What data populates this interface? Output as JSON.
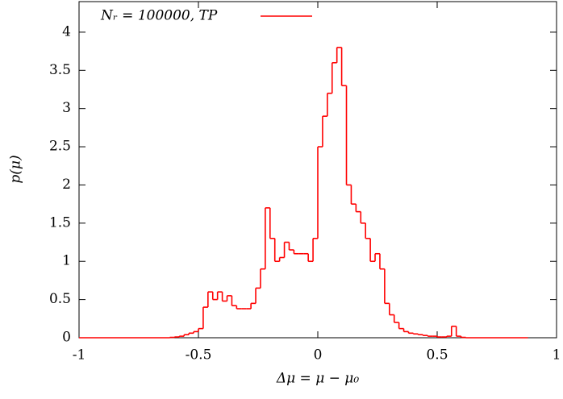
{
  "chart_data": {
    "type": "histogram",
    "xlabel": "Δμ = μ − μ₀",
    "ylabel": "p(μ)",
    "series": [
      {
        "name": "Nᵣ = 100000, TP",
        "color": "#ff0000",
        "bins": [
          -1,
          -0.62,
          -0.6,
          -0.58,
          -0.56,
          -0.54,
          -0.52,
          -0.5,
          -0.48,
          -0.46,
          -0.44,
          -0.42,
          -0.4,
          -0.38,
          -0.36,
          -0.34,
          -0.32,
          -0.3,
          -0.28,
          -0.26,
          -0.24,
          -0.22,
          -0.2,
          -0.18,
          -0.16,
          -0.14,
          -0.12,
          -0.1,
          -0.08,
          -0.06,
          -0.04,
          -0.02,
          0,
          0.02,
          0.04,
          0.06,
          0.08,
          0.1,
          0.12,
          0.14,
          0.16,
          0.18,
          0.2,
          0.22,
          0.24,
          0.26,
          0.28,
          0.3,
          0.32,
          0.34,
          0.36,
          0.38,
          0.4,
          0.42,
          0.44,
          0.46,
          0.48,
          0.5,
          0.52,
          0.54,
          0.56,
          0.58,
          0.6,
          0.62,
          0.88
        ],
        "values": [
          0,
          0.005,
          0.01,
          0.02,
          0.04,
          0.06,
          0.08,
          0.12,
          0.4,
          0.6,
          0.5,
          0.6,
          0.48,
          0.55,
          0.42,
          0.38,
          0.38,
          0.38,
          0.45,
          0.65,
          0.9,
          1.7,
          1.3,
          1.0,
          1.05,
          1.25,
          1.15,
          1.1,
          1.1,
          1.1,
          1.0,
          1.3,
          2.5,
          2.9,
          3.2,
          3.6,
          3.8,
          3.3,
          2.0,
          1.75,
          1.65,
          1.5,
          1.3,
          1.0,
          1.1,
          0.9,
          0.45,
          0.3,
          0.2,
          0.12,
          0.08,
          0.06,
          0.05,
          0.04,
          0.03,
          0.02,
          0.02,
          0.01,
          0.01,
          0.02,
          0.15,
          0.02,
          0.005,
          0
        ]
      }
    ],
    "xlim": [
      -1,
      1
    ],
    "xticks": [
      -1,
      -0.5,
      0,
      0.5,
      1
    ],
    "ylim": [
      0,
      4.4
    ],
    "yticks": [
      0,
      0.5,
      1,
      1.5,
      2,
      2.5,
      3,
      3.5,
      4
    ],
    "legend": "top-left"
  }
}
